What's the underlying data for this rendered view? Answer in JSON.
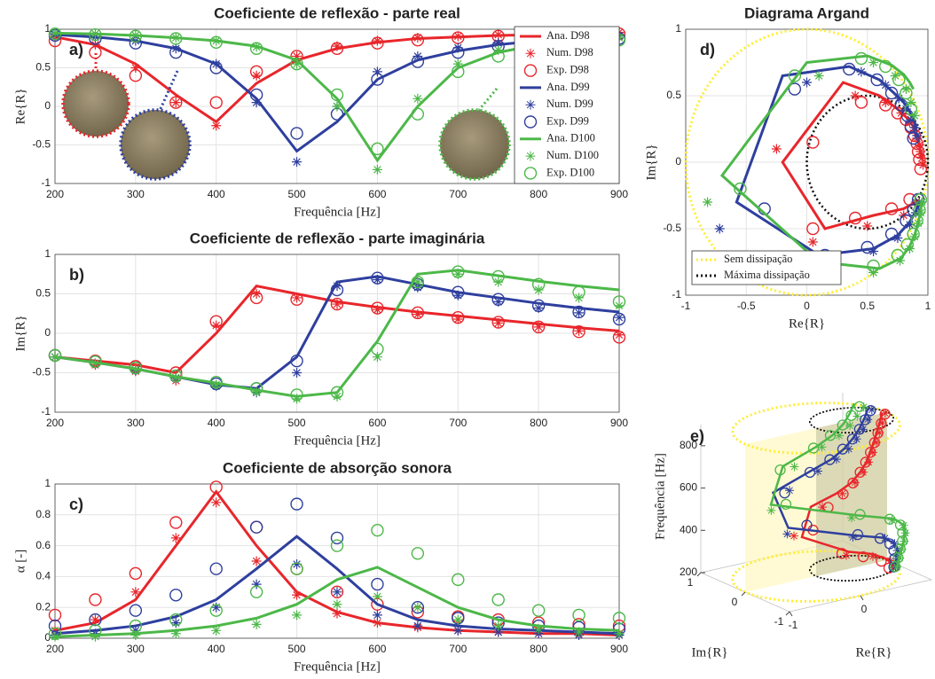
{
  "chart_data": [
    {
      "type": "line",
      "label": "a)",
      "title": "Coeficiente de reflexão - parte real",
      "xlabel": "Frequência [Hz]",
      "ylabel": "Re{R}",
      "x": [
        200,
        250,
        300,
        350,
        400,
        450,
        500,
        550,
        600,
        650,
        700,
        750,
        800,
        850,
        900
      ],
      "xlim": [
        200,
        900
      ],
      "xticks": [
        200,
        300,
        400,
        500,
        600,
        700,
        800,
        900
      ],
      "ylim": [
        -1,
        1
      ],
      "yticks": [
        -1,
        -0.5,
        0,
        0.5,
        1
      ],
      "grid": true,
      "legend": "upper right",
      "series": [
        {
          "name": "Ana. D98",
          "color": "#e8262b",
          "style": "line",
          "values": [
            0.9,
            0.8,
            0.55,
            0.15,
            -0.2,
            0.3,
            0.6,
            0.75,
            0.83,
            0.88,
            0.9,
            0.92,
            0.93,
            0.94,
            0.95
          ]
        },
        {
          "name": "Num. D98",
          "color": "#e8262b",
          "style": "asterisk",
          "values": [
            0.9,
            0.8,
            0.5,
            0.05,
            -0.25,
            0.4,
            0.65,
            0.78,
            0.85,
            0.89,
            0.91,
            0.93,
            0.94,
            0.95,
            0.96
          ]
        },
        {
          "name": "Exp. D98",
          "color": "#e8262b",
          "style": "circle",
          "values": [
            0.85,
            0.7,
            0.4,
            0.05,
            0.05,
            0.45,
            0.65,
            0.75,
            0.82,
            0.86,
            0.89,
            0.91,
            0.92,
            0.93,
            0.94
          ]
        },
        {
          "name": "Ana. D99",
          "color": "#2e3f9e",
          "style": "line",
          "values": [
            0.93,
            0.9,
            0.85,
            0.75,
            0.55,
            0.1,
            -0.58,
            -0.2,
            0.35,
            0.6,
            0.72,
            0.8,
            0.85,
            0.88,
            0.9
          ]
        },
        {
          "name": "Num. D99",
          "color": "#2e3f9e",
          "style": "asterisk",
          "values": [
            0.93,
            0.9,
            0.85,
            0.75,
            0.55,
            0.05,
            -0.72,
            0.0,
            0.45,
            0.65,
            0.76,
            0.82,
            0.86,
            0.89,
            0.91
          ]
        },
        {
          "name": "Exp. D99",
          "color": "#2e3f9e",
          "style": "circle",
          "values": [
            0.92,
            0.88,
            0.82,
            0.7,
            0.5,
            0.15,
            -0.35,
            -0.1,
            0.35,
            0.58,
            0.7,
            0.78,
            0.83,
            0.86,
            0.88
          ]
        },
        {
          "name": "Ana. D100",
          "color": "#4cb848",
          "style": "line",
          "values": [
            0.95,
            0.94,
            0.92,
            0.89,
            0.85,
            0.78,
            0.6,
            0.1,
            -0.7,
            0.0,
            0.5,
            0.7,
            0.8,
            0.85,
            0.88
          ]
        },
        {
          "name": "Num. D100",
          "color": "#4cb848",
          "style": "asterisk",
          "values": [
            0.95,
            0.94,
            0.92,
            0.89,
            0.85,
            0.77,
            0.55,
            0.0,
            -0.82,
            0.1,
            0.55,
            0.73,
            0.82,
            0.86,
            0.89
          ]
        },
        {
          "name": "Exp. D100",
          "color": "#4cb848",
          "style": "circle",
          "values": [
            0.94,
            0.93,
            0.91,
            0.88,
            0.83,
            0.75,
            0.55,
            0.15,
            -0.55,
            -0.1,
            0.45,
            0.65,
            0.76,
            0.82,
            0.86
          ]
        }
      ]
    },
    {
      "type": "line",
      "label": "b)",
      "title": "Coeficiente de reflexão - parte imaginária",
      "xlabel": "Frequência [Hz]",
      "ylabel": "Im{R}",
      "x": [
        200,
        250,
        300,
        350,
        400,
        450,
        500,
        550,
        600,
        650,
        700,
        750,
        800,
        850,
        900
      ],
      "xlim": [
        200,
        900
      ],
      "xticks": [
        200,
        300,
        400,
        500,
        600,
        700,
        800,
        900
      ],
      "ylim": [
        -1,
        1
      ],
      "yticks": [
        -1,
        -0.5,
        0,
        0.5,
        1
      ],
      "grid": true,
      "series": [
        {
          "color": "#e8262b",
          "style": "line",
          "values": [
            -0.3,
            -0.35,
            -0.4,
            -0.5,
            0.0,
            0.6,
            0.5,
            0.4,
            0.33,
            0.27,
            0.22,
            0.17,
            0.12,
            0.07,
            0.03
          ]
        },
        {
          "color": "#e8262b",
          "style": "asterisk",
          "values": [
            -0.3,
            -0.4,
            -0.48,
            -0.6,
            0.1,
            0.5,
            0.45,
            0.37,
            0.3,
            0.24,
            0.18,
            0.13,
            0.08,
            0.03,
            -0.02
          ]
        },
        {
          "color": "#e8262b",
          "style": "circle",
          "values": [
            -0.28,
            -0.35,
            -0.42,
            -0.5,
            0.15,
            0.45,
            0.43,
            0.37,
            0.32,
            0.26,
            0.2,
            0.14,
            0.08,
            0.02,
            -0.05
          ]
        },
        {
          "color": "#2e3f9e",
          "style": "line",
          "values": [
            -0.3,
            -0.37,
            -0.45,
            -0.55,
            -0.65,
            -0.7,
            -0.3,
            0.65,
            0.72,
            0.62,
            0.52,
            0.45,
            0.38,
            0.32,
            0.27
          ]
        },
        {
          "color": "#2e3f9e",
          "style": "asterisk",
          "values": [
            -0.3,
            -0.38,
            -0.47,
            -0.57,
            -0.67,
            -0.75,
            -0.5,
            0.6,
            0.68,
            0.58,
            0.48,
            0.4,
            0.32,
            0.26,
            0.2
          ]
        },
        {
          "color": "#2e3f9e",
          "style": "circle",
          "values": [
            -0.28,
            -0.36,
            -0.44,
            -0.54,
            -0.64,
            -0.7,
            -0.35,
            0.55,
            0.7,
            0.62,
            0.52,
            0.43,
            0.35,
            0.27,
            0.18
          ]
        },
        {
          "color": "#4cb848",
          "style": "line",
          "values": [
            -0.3,
            -0.37,
            -0.45,
            -0.55,
            -0.63,
            -0.72,
            -0.8,
            -0.75,
            -0.1,
            0.75,
            0.8,
            0.73,
            0.66,
            0.6,
            0.55
          ]
        },
        {
          "color": "#4cb848",
          "style": "asterisk",
          "values": [
            -0.3,
            -0.38,
            -0.46,
            -0.56,
            -0.65,
            -0.74,
            -0.83,
            -0.8,
            -0.3,
            0.65,
            0.75,
            0.65,
            0.55,
            0.45,
            0.35
          ]
        },
        {
          "color": "#4cb848",
          "style": "circle",
          "values": [
            -0.28,
            -0.36,
            -0.44,
            -0.54,
            -0.62,
            -0.7,
            -0.78,
            -0.75,
            -0.2,
            0.65,
            0.78,
            0.72,
            0.62,
            0.52,
            0.4
          ]
        }
      ]
    },
    {
      "type": "line",
      "label": "c)",
      "title": "Coeficiente de absorção sonora",
      "xlabel": "Frequência [Hz]",
      "ylabel": "α [-]",
      "x": [
        200,
        250,
        300,
        350,
        400,
        450,
        500,
        550,
        600,
        650,
        700,
        750,
        800,
        850,
        900
      ],
      "xlim": [
        200,
        900
      ],
      "xticks": [
        200,
        300,
        400,
        500,
        600,
        700,
        800,
        900
      ],
      "ylim": [
        0,
        1
      ],
      "yticks": [
        0,
        0.2,
        0.4,
        0.6,
        0.8,
        1
      ],
      "grid": true,
      "series": [
        {
          "color": "#e8262b",
          "style": "line",
          "values": [
            0.05,
            0.1,
            0.25,
            0.6,
            0.95,
            0.6,
            0.3,
            0.17,
            0.1,
            0.07,
            0.05,
            0.04,
            0.03,
            0.03,
            0.02
          ]
        },
        {
          "color": "#e8262b",
          "style": "asterisk",
          "values": [
            0.05,
            0.12,
            0.3,
            0.65,
            0.88,
            0.5,
            0.28,
            0.16,
            0.1,
            0.07,
            0.05,
            0.04,
            0.03,
            0.03,
            0.02
          ]
        },
        {
          "color": "#e8262b",
          "style": "circle",
          "values": [
            0.15,
            0.25,
            0.42,
            0.75,
            0.98,
            0.72,
            0.45,
            0.3,
            0.22,
            0.17,
            0.14,
            0.12,
            0.1,
            0.09,
            0.08
          ]
        },
        {
          "color": "#2e3f9e",
          "style": "line",
          "values": [
            0.03,
            0.05,
            0.08,
            0.14,
            0.25,
            0.45,
            0.66,
            0.45,
            0.22,
            0.12,
            0.08,
            0.06,
            0.05,
            0.04,
            0.03
          ]
        },
        {
          "color": "#2e3f9e",
          "style": "asterisk",
          "values": [
            0.02,
            0.03,
            0.05,
            0.1,
            0.2,
            0.35,
            0.48,
            0.3,
            0.15,
            0.08,
            0.05,
            0.04,
            0.03,
            0.02,
            0.02
          ]
        },
        {
          "color": "#2e3f9e",
          "style": "circle",
          "values": [
            0.08,
            0.12,
            0.18,
            0.28,
            0.45,
            0.72,
            0.87,
            0.65,
            0.35,
            0.2,
            0.13,
            0.1,
            0.08,
            0.07,
            0.06
          ]
        },
        {
          "color": "#4cb848",
          "style": "line",
          "values": [
            0.01,
            0.02,
            0.03,
            0.05,
            0.08,
            0.13,
            0.22,
            0.38,
            0.46,
            0.33,
            0.2,
            0.12,
            0.08,
            0.06,
            0.05
          ]
        },
        {
          "color": "#4cb848",
          "style": "asterisk",
          "values": [
            0.01,
            0.01,
            0.02,
            0.03,
            0.05,
            0.09,
            0.15,
            0.22,
            0.27,
            0.2,
            0.12,
            0.08,
            0.06,
            0.04,
            0.03
          ]
        },
        {
          "color": "#4cb848",
          "style": "circle",
          "values": [
            0.03,
            0.05,
            0.08,
            0.12,
            0.18,
            0.3,
            0.45,
            0.6,
            0.7,
            0.55,
            0.38,
            0.25,
            0.18,
            0.15,
            0.13
          ]
        }
      ]
    },
    {
      "type": "argand",
      "label": "d)",
      "title": "Diagrama Argand",
      "xlabel": "Re{R}",
      "ylabel": "Im{R}",
      "xlim": [
        -1,
        1
      ],
      "xticks": [
        -1,
        -0.5,
        0,
        0.5,
        1
      ],
      "ylim": [
        -1,
        1
      ],
      "yticks": [
        -1,
        -0.5,
        0,
        0.5,
        1
      ],
      "grid": true,
      "legend": "lower left",
      "series": [
        {
          "name": "Sem dissipação",
          "color": "#ffee33"
        },
        {
          "name": "Máxima dissipação",
          "color": "#111111"
        }
      ]
    },
    {
      "type": "3d",
      "label": "e)",
      "xlabel": "Re{R}",
      "ylabel": "Im{R}",
      "zlabel": "Frequência [Hz]",
      "xlim": [
        -1,
        1
      ],
      "xticks": [
        -1,
        0
      ],
      "ylim": [
        -1,
        1
      ],
      "yticks": [
        -1,
        0,
        1
      ],
      "zlim": [
        200,
        900
      ],
      "zticks": [
        200,
        400,
        600,
        800
      ]
    }
  ]
}
